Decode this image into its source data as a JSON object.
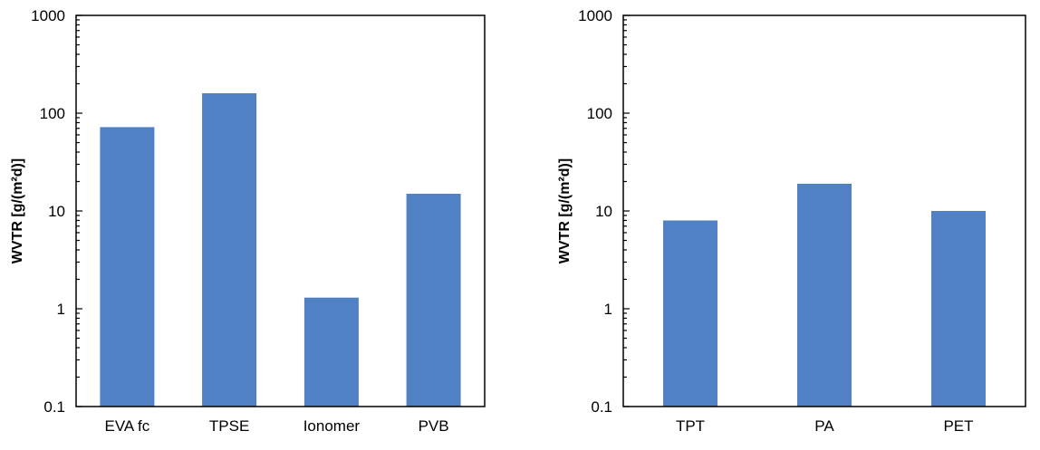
{
  "colors": {
    "bar": "#4f81c4",
    "axis": "#000000"
  },
  "chart_data": [
    {
      "type": "bar",
      "title": "",
      "xlabel": "",
      "ylabel": "WVTR [g/(m²d)]",
      "yscale": "log",
      "ylim": [
        0.1,
        1000
      ],
      "yticks": [
        {
          "value": 0.1,
          "label": "0.1"
        },
        {
          "value": 1,
          "label": "1"
        },
        {
          "value": 10,
          "label": "10"
        },
        {
          "value": 100,
          "label": "100"
        },
        {
          "value": 1000,
          "label": "1000"
        }
      ],
      "grid": false,
      "legend": "none",
      "categories": [
        "EVA fc",
        "TPSE",
        "Ionomer",
        "PVB"
      ],
      "values": [
        72,
        160,
        1.3,
        15
      ]
    },
    {
      "type": "bar",
      "title": "",
      "xlabel": "",
      "ylabel": "WVTR [g/(m²d)]",
      "yscale": "log",
      "ylim": [
        0.1,
        1000
      ],
      "yticks": [
        {
          "value": 0.1,
          "label": "0.1"
        },
        {
          "value": 1,
          "label": "1"
        },
        {
          "value": 10,
          "label": "10"
        },
        {
          "value": 100,
          "label": "100"
        },
        {
          "value": 1000,
          "label": "1000"
        }
      ],
      "grid": false,
      "legend": "none",
      "categories": [
        "TPT",
        "PA",
        "PET"
      ],
      "values": [
        8,
        19,
        10
      ]
    }
  ]
}
